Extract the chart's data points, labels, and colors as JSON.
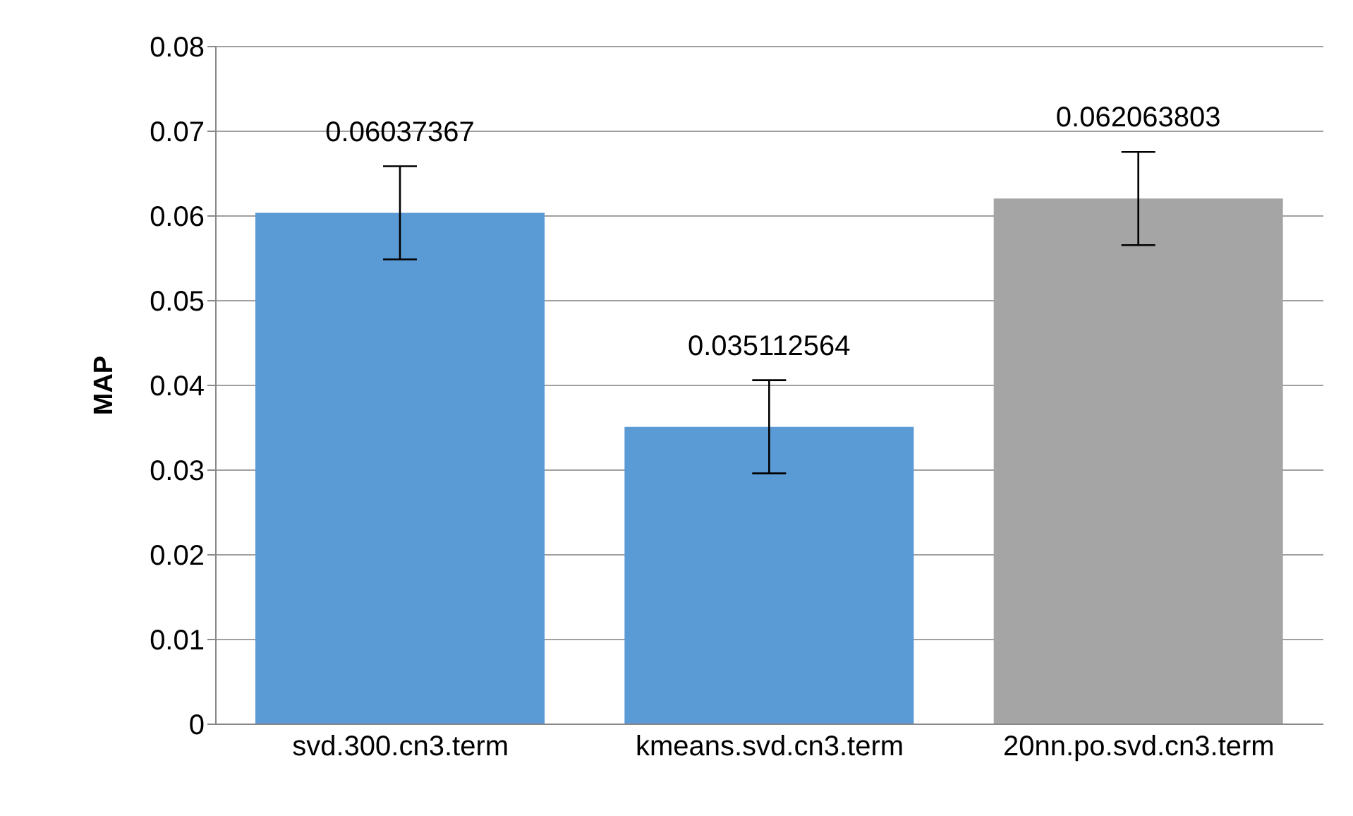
{
  "chart_data": {
    "type": "bar",
    "ylabel": "MAP",
    "categories": [
      "svd.300.cn3.term",
      "kmeans.svd.cn3.term",
      "20nn.po.svd.cn3.term"
    ],
    "values": [
      0.06037367,
      0.035112564,
      0.062063803
    ],
    "colors": [
      "#5b9bd5",
      "#5b9bd5",
      "#a5a5a5"
    ],
    "errors": [
      0.0055,
      0.0055,
      0.0055
    ],
    "data_labels": true,
    "ylim": [
      0,
      0.08
    ],
    "yticks": [
      0,
      0.01,
      0.02,
      0.03,
      0.04,
      0.05,
      0.06,
      0.07,
      0.08
    ],
    "grid": "y",
    "legend": false
  }
}
